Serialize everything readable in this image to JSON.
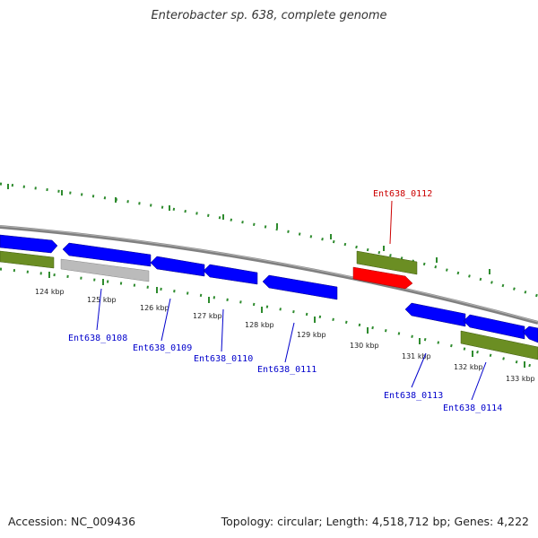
{
  "title": "Enterobacter sp. 638, complete genome",
  "footer": {
    "accession": "Accession: NC_009436",
    "summary": "Topology: circular; Length: 4,518,712 bp; Genes: 4,222"
  },
  "colors": {
    "background": "#ffffff",
    "tick": "#2e8b2e",
    "backbone": "#808080",
    "cds": "#0000ff",
    "gene": "#6b8e23",
    "pseudo": "#bbbbbb",
    "highlight": "#ff0000",
    "label_blue": "#0000cc",
    "label_red": "#cc0000"
  },
  "ruler_labels": [
    "124 kbp",
    "125 kbp",
    "126 kbp",
    "127 kbp",
    "128 kbp",
    "129 kbp",
    "130 kbp",
    "131 kbp",
    "132 kbp",
    "133 kbp"
  ],
  "gene_labels": [
    {
      "id": "lbl-0112",
      "text": "Ent638_0112",
      "color": "red"
    },
    {
      "id": "lbl-0108",
      "text": "Ent638_0108",
      "color": "blue"
    },
    {
      "id": "lbl-0109",
      "text": "Ent638_0109",
      "color": "blue"
    },
    {
      "id": "lbl-0110",
      "text": "Ent638_0110",
      "color": "blue"
    },
    {
      "id": "lbl-0111",
      "text": "Ent638_0111",
      "color": "blue"
    },
    {
      "id": "lbl-0113",
      "text": "Ent638_0113",
      "color": "blue"
    },
    {
      "id": "lbl-0114",
      "text": "Ent638_0114",
      "color": "blue"
    }
  ]
}
